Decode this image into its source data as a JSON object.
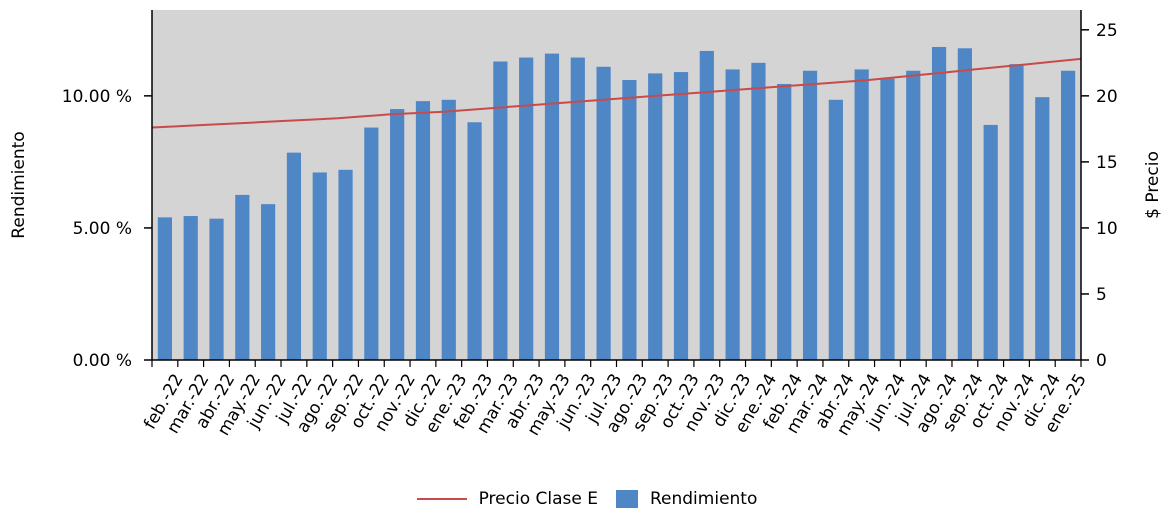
{
  "chart_data": {
    "type": "bar",
    "categories": [
      "feb.-22",
      "mar.-22",
      "abr.-22",
      "may.-22",
      "jun.-22",
      "jul.-22",
      "ago.-22",
      "sep.-22",
      "oct.-22",
      "nov.-22",
      "dic.-22",
      "ene.-23",
      "feb.-23",
      "mar.-23",
      "abr.-23",
      "may.-23",
      "jun.-23",
      "jul.-23",
      "ago.-23",
      "sep.-23",
      "oct.-23",
      "nov.-23",
      "dic.-23",
      "ene.-24",
      "feb.-24",
      "mar.-24",
      "abr.-24",
      "may.-24",
      "jun.-24",
      "jul.-24",
      "ago.-24",
      "sep.-24",
      "oct.-24",
      "nov.-24",
      "dic.-24",
      "ene.-25"
    ],
    "series": [
      {
        "name": "Rendimiento",
        "type": "bar",
        "axis": "left",
        "color": "#4f86c6",
        "values": [
          5.4,
          5.45,
          5.35,
          6.25,
          5.9,
          7.85,
          7.1,
          7.2,
          8.8,
          9.5,
          9.8,
          9.85,
          9.0,
          11.3,
          11.45,
          11.6,
          11.45,
          11.1,
          10.6,
          10.85,
          10.9,
          11.7,
          11.0,
          11.25,
          10.45,
          10.95,
          9.85,
          11.0,
          10.65,
          10.95,
          11.85,
          11.8,
          8.9,
          11.2,
          9.95,
          10.95
        ]
      },
      {
        "name": "Precio Clase E",
        "type": "line",
        "axis": "right",
        "color": "#c94a4a",
        "values": [
          17.6,
          17.7,
          17.8,
          17.9,
          18.0,
          18.1,
          18.2,
          18.3,
          18.45,
          18.6,
          18.7,
          18.8,
          18.95,
          19.1,
          19.25,
          19.4,
          19.55,
          19.7,
          19.85,
          20.0,
          20.15,
          20.3,
          20.45,
          20.6,
          20.75,
          20.9,
          21.05,
          21.2,
          21.4,
          21.6,
          21.8,
          22.0,
          22.2,
          22.4,
          22.6,
          22.8
        ]
      }
    ],
    "ylabel": "Rendimiento",
    "y2label": "$ Precio",
    "ylim": [
      0,
      13.25
    ],
    "y2lim": [
      0,
      26.5
    ],
    "yticks": [
      "0.00 %",
      "5.00 %",
      "10.00 %"
    ],
    "yticks_values": [
      0,
      5,
      10
    ],
    "y2ticks": [
      "0",
      "5",
      "10",
      "15",
      "20",
      "25"
    ],
    "y2ticks_values": [
      0,
      5,
      10,
      15,
      20,
      25
    ],
    "grid": false,
    "plot_background": "#d4d4d4",
    "legend_position": "bottom"
  },
  "legend": {
    "line_label": "Precio Clase E",
    "bar_label": "Rendimiento"
  }
}
